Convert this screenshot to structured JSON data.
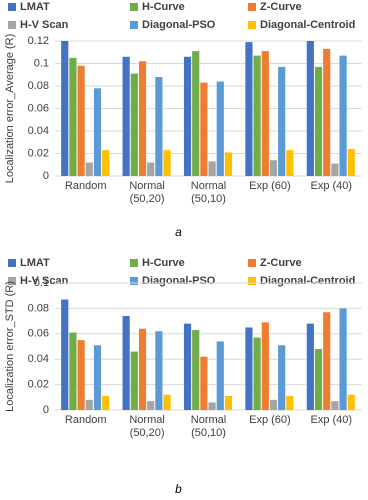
{
  "chart_data": [
    {
      "type": "bar",
      "y_label": "Localization error_Average (R)",
      "caption": "a",
      "categories": [
        "Random",
        "Normal\n(50,20)",
        "Normal\n(50,10)",
        "Exp (60)",
        "Exp (40)"
      ],
      "series": [
        {
          "name": "LMAT",
          "color": "#4472c4",
          "values": [
            0.12,
            0.106,
            0.106,
            0.119,
            0.12
          ]
        },
        {
          "name": "H-Curve",
          "color": "#70ad47",
          "values": [
            0.105,
            0.091,
            0.111,
            0.107,
            0.097
          ]
        },
        {
          "name": "Z-Curve",
          "color": "#ed7d31",
          "values": [
            0.098,
            0.102,
            0.083,
            0.111,
            0.113
          ]
        },
        {
          "name": "H-V Scan",
          "color": "#a5a5a5",
          "values": [
            0.012,
            0.012,
            0.013,
            0.014,
            0.011
          ]
        },
        {
          "name": "Diagonal-PSO",
          "color": "#5b9bd5",
          "values": [
            0.078,
            0.088,
            0.084,
            0.097,
            0.107
          ]
        },
        {
          "name": "Diagonal-Centroid",
          "color": "#ffc000",
          "values": [
            0.023,
            0.023,
            0.021,
            0.023,
            0.024
          ]
        }
      ],
      "ylim": [
        0,
        0.12
      ],
      "yticks": [
        0,
        0.02,
        0.04,
        0.06,
        0.08,
        0.1,
        0.12
      ],
      "grid": true
    },
    {
      "type": "bar",
      "y_label": "Localization error_STD (R)",
      "caption": "b",
      "categories": [
        "Random",
        "Normal\n(50,20)",
        "Normal\n(50,10)",
        "Exp (60)",
        "Exp (40)"
      ],
      "series": [
        {
          "name": "LMAT",
          "color": "#4472c4",
          "values": [
            0.087,
            0.074,
            0.068,
            0.065,
            0.068
          ]
        },
        {
          "name": "H-Curve",
          "color": "#70ad47",
          "values": [
            0.061,
            0.046,
            0.063,
            0.057,
            0.048
          ]
        },
        {
          "name": "Z-Curve",
          "color": "#ed7d31",
          "values": [
            0.055,
            0.064,
            0.042,
            0.069,
            0.077
          ]
        },
        {
          "name": "H-V Scan",
          "color": "#a5a5a5",
          "values": [
            0.008,
            0.007,
            0.006,
            0.008,
            0.007
          ]
        },
        {
          "name": "Diagonal-PSO",
          "color": "#5b9bd5",
          "values": [
            0.051,
            0.062,
            0.054,
            0.051,
            0.08
          ]
        },
        {
          "name": "Diagonal-Centroid",
          "color": "#ffc000",
          "values": [
            0.011,
            0.012,
            0.011,
            0.011,
            0.012
          ]
        }
      ],
      "ylim": [
        0,
        0.1
      ],
      "yticks": [
        0,
        0.02,
        0.04,
        0.06,
        0.08,
        0.1
      ],
      "grid": true
    }
  ]
}
